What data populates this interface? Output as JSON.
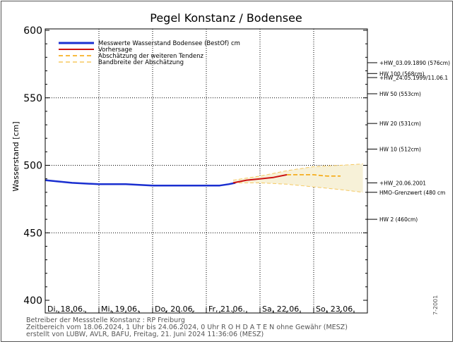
{
  "chart_data": {
    "type": "line",
    "title": "Pegel Konstanz / Bodensee",
    "ylabel": "Wasserstand [cm]",
    "ylim": [
      400,
      600
    ],
    "yticks": [
      400,
      450,
      500,
      550,
      600
    ],
    "x_tick_labels": [
      "Di, 18.06.",
      "Mi, 19.06.",
      "Do, 20.06.",
      "Fr, 21.06.",
      "Sa, 22.06.",
      "So, 23.06."
    ],
    "x_range_hours": [
      0,
      143
    ],
    "legend": {
      "position": "top-left",
      "entries": [
        {
          "label": "Messwerte Wasserstand Bodensee  (BestOf)  cm",
          "color": "#1a2fd0",
          "style": "solid"
        },
        {
          "label": "Vorhersage",
          "color": "#cc1111",
          "style": "solid"
        },
        {
          "label": "Abschätzung der weiteren Tendenz",
          "color": "#f5a300",
          "style": "dashed"
        },
        {
          "label": "Bandbreite der Abschätzung",
          "color": "#f5c860",
          "style": "dashed"
        }
      ]
    },
    "series": [
      {
        "name": "Messwerte Wasserstand Bodensee  (BestOf)  cm",
        "color": "#1a2fd0",
        "x_hours": [
          0,
          6,
          12,
          24,
          36,
          48,
          60,
          72,
          78,
          82,
          85
        ],
        "values": [
          489,
          488,
          487,
          486,
          486,
          485,
          485,
          485,
          485,
          486,
          487
        ]
      },
      {
        "name": "Vorhersage",
        "color": "#cc1111",
        "x_hours": [
          84,
          90,
          96,
          102,
          108
        ],
        "values": [
          487,
          489,
          490,
          491,
          493
        ]
      },
      {
        "name": "Abschätzung der weiteren Tendenz",
        "color": "#f5a300",
        "x_hours": [
          108,
          114,
          120,
          126,
          132
        ],
        "values": [
          493,
          493,
          493,
          492,
          492
        ]
      },
      {
        "name": "Bandbreite der Abschätzung",
        "color": "#f5c860",
        "x_hours": [
          84,
          96,
          108,
          120,
          132,
          142
        ],
        "upper": [
          489,
          492,
          496,
          499,
          500,
          501
        ],
        "lower": [
          487,
          487,
          486,
          484,
          482,
          480
        ]
      }
    ],
    "thresholds": [
      {
        "label": "+HW_03.09.1890 (576cm)",
        "value": 576
      },
      {
        "label": "HW 100 (568cm)",
        "value": 568
      },
      {
        "label": "+HW_24.05.1999/11.06.1",
        "value": 565
      },
      {
        "label": "HW 50 (553cm)",
        "value": 553
      },
      {
        "label": "HW 20 (531cm)",
        "value": 531
      },
      {
        "label": "HW 10 (512cm)",
        "value": 512
      },
      {
        "label": "+HW_20.06.2001",
        "value": 487
      },
      {
        "label": "HMO-Grenzwert (480 cm",
        "value": 480
      },
      {
        "label": "HW 2 (460cm)",
        "value": 460
      }
    ]
  },
  "footer": {
    "line1": "Betreiber der Messstelle Konstanz : RP Freiburg",
    "line2": "Zeitbereich vom 18.06.2024, 1 Uhr bis 24.06.2024, 0 Uhr    R O H D A T E N ohne Gewähr (MESZ)",
    "line3": "erstellt von LUBW, AVLR, BAFU, Freitag, 21. Juni 2024 11:36:06 (MESZ)",
    "side_code": "7-2001"
  }
}
